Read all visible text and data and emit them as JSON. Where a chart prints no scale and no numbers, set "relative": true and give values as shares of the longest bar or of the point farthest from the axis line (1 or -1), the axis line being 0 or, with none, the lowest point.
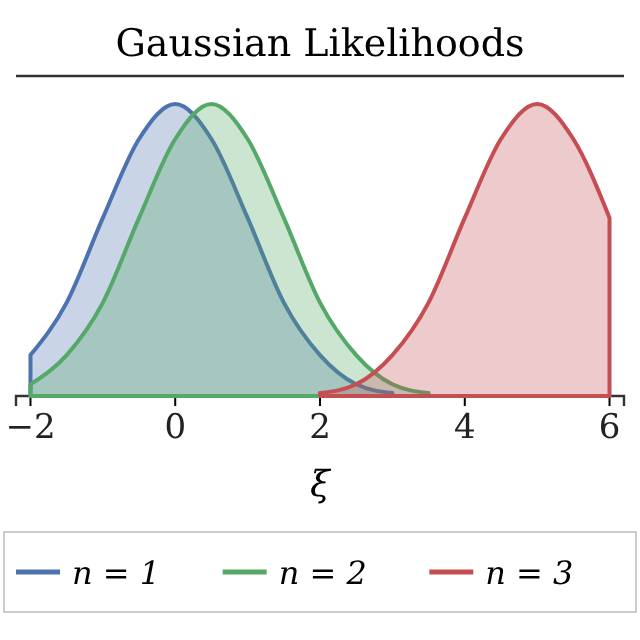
{
  "chart_data": {
    "type": "area",
    "title": "Gaussian Likelihoods",
    "xlabel": "ξ",
    "relative": true,
    "xlim": [
      -2.2,
      6.2
    ],
    "xticks": [
      -2,
      0,
      2,
      4,
      6
    ],
    "legend": "bottom",
    "grid": false,
    "series": [
      {
        "name": "n = 1",
        "color": "#4c72b0",
        "x": [
          -2,
          -1.5,
          -1,
          -0.5,
          0,
          0.5,
          1,
          1.5,
          2,
          2.5,
          3
        ],
        "values": [
          0.14,
          0.32,
          0.61,
          0.88,
          1,
          0.88,
          0.61,
          0.32,
          0.14,
          0.04,
          0.01
        ]
      },
      {
        "name": "n = 2",
        "color": "#55a868",
        "x": [
          -2,
          -1.5,
          -1,
          -0.5,
          0,
          0.5,
          1,
          1.5,
          2,
          2.5,
          3,
          3.5
        ],
        "values": [
          0.04,
          0.14,
          0.32,
          0.61,
          0.88,
          1,
          0.88,
          0.61,
          0.32,
          0.14,
          0.04,
          0.01
        ]
      },
      {
        "name": "n = 3",
        "color": "#c44e52",
        "x": [
          2,
          2.5,
          3,
          3.5,
          4,
          4.5,
          5,
          5.5,
          6
        ],
        "values": [
          0.01,
          0.04,
          0.14,
          0.32,
          0.61,
          0.88,
          1,
          0.88,
          0.61
        ]
      }
    ]
  }
}
